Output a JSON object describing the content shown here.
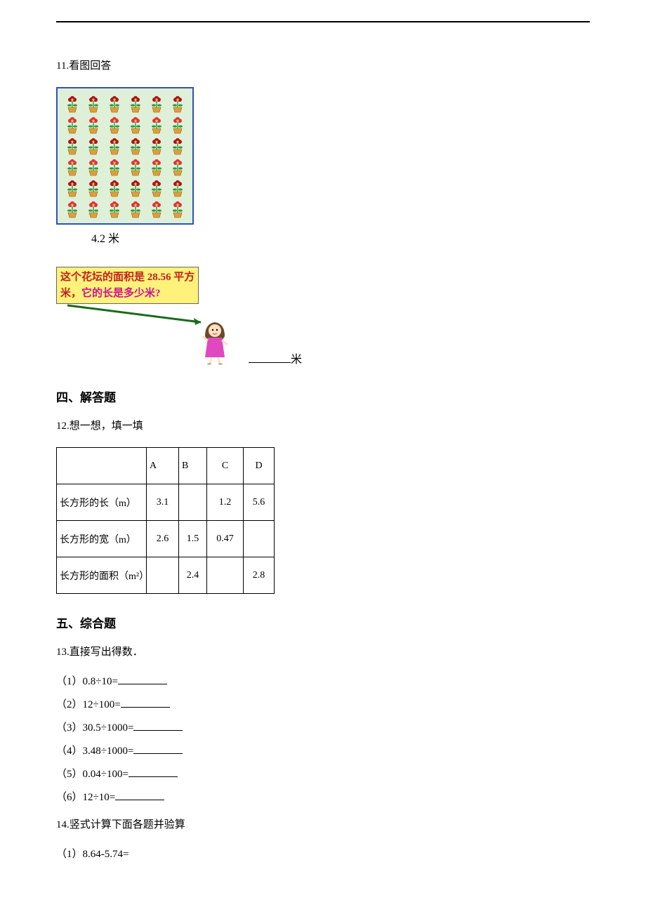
{
  "q11": {
    "prefix": "11.",
    "title": "看图回答",
    "flower_grid": {
      "rows": 6,
      "cols": 6
    },
    "flower_colors": {
      "pot": "#d8a040",
      "pot_stroke": "#a06000",
      "flower_dark": "#b01020",
      "flower_light": "#e03040",
      "leaf": "#2e9b3a"
    },
    "bed_border_color": "#3050c0",
    "bed_bg_color": "#dff0d8",
    "width_label": "4.2 米",
    "callout_line1": "这个花坛的面积是 28.56 平方",
    "callout_line2_a": "米，",
    "callout_line2_b": "它的长是多少米?",
    "callout_bg": "#fff27a",
    "callout_text1_color": "#c02020",
    "callout_text2_color": "#d01090",
    "answer_unit": "米"
  },
  "section4": "四、解答题",
  "q12": {
    "prefix": "12.",
    "title": "想一想，填一填",
    "headers": [
      "",
      "A",
      "B",
      "C",
      "D"
    ],
    "rows": [
      {
        "label": "长方形的长（m）",
        "A": "3.1",
        "B": "",
        "C": "1.2",
        "D": "5.6"
      },
      {
        "label": "长方形的宽（m）",
        "A": "2.6",
        "B": "1.5",
        "C": "0.47",
        "D": ""
      },
      {
        "label": "长方形的面积（m²）",
        "A": "",
        "B": "2.4",
        "C": "",
        "D": "2.8"
      }
    ]
  },
  "section5": "五、综合题",
  "q13": {
    "prefix": "13.",
    "title": "直接写出得数．",
    "items": [
      "（1）0.8÷10=",
      "（2）12÷100=",
      "（3）30.5÷1000=",
      "（4）3.48÷1000=",
      "（5）0.04÷100=",
      "（6）12÷10="
    ]
  },
  "q14": {
    "prefix": "14.",
    "title": "竖式计算下面各题并验算",
    "items": [
      "（1）8.64-5.74="
    ]
  }
}
